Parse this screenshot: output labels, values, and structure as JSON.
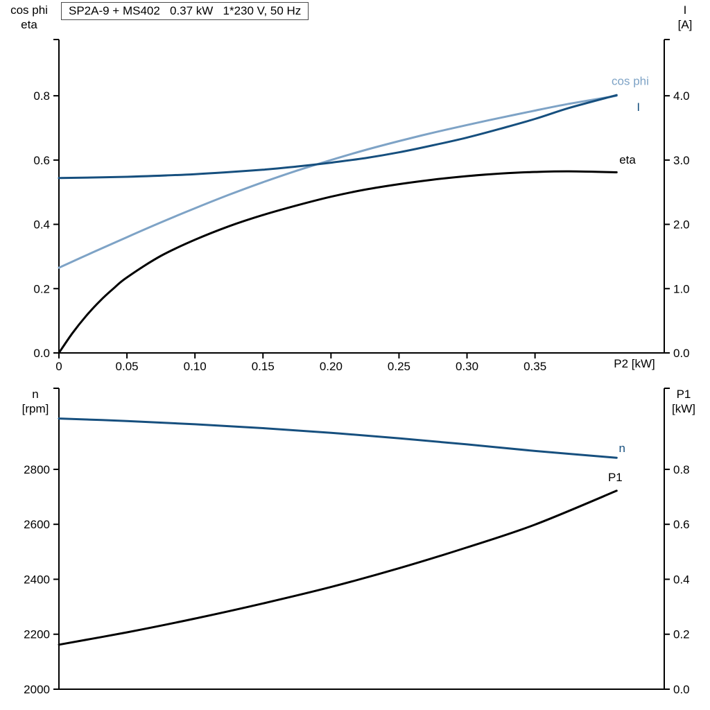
{
  "colors": {
    "dark_blue": "#164f7e",
    "light_blue": "#7ea3c6",
    "black": "#000000",
    "axis": "#000000"
  },
  "chart_data": [
    {
      "type": "line",
      "id": "motor-electrical-curves",
      "title": "SP2A-9 + MS402   0.37 kW   1*230 V, 50 Hz",
      "x_axis": {
        "label": "P2 [kW]",
        "range": [
          0,
          0.445
        ],
        "tick_values": [
          0,
          0.05,
          0.1,
          0.15,
          0.2,
          0.25,
          0.3,
          0.35
        ],
        "tick_labels": [
          "0",
          "0.05",
          "0.10",
          "0.15",
          "0.20",
          "0.25",
          "0.30",
          "0.35"
        ]
      },
      "left_axis": {
        "title_lines": [
          "cos phi",
          "eta"
        ],
        "range": [
          0,
          0.975
        ],
        "tick_values": [
          0.0,
          0.2,
          0.4,
          0.6,
          0.8
        ],
        "tick_labels": [
          "0.0",
          "0.2",
          "0.4",
          "0.6",
          "0.8"
        ]
      },
      "right_axis": {
        "title_lines": [
          "I",
          "[A]"
        ],
        "range": [
          0,
          4.875
        ],
        "tick_values": [
          0.0,
          1.0,
          2.0,
          3.0,
          4.0
        ],
        "tick_labels": [
          "0.0",
          "1.0",
          "2.0",
          "3.0",
          "4.0"
        ]
      },
      "series": [
        {
          "name": "cos phi",
          "color": "light_blue",
          "axis": "left",
          "label": {
            "x": 0.42,
            "y": 0.845
          },
          "points": [
            [
              0,
              0.265
            ],
            [
              0.025,
              0.313
            ],
            [
              0.05,
              0.36
            ],
            [
              0.075,
              0.406
            ],
            [
              0.1,
              0.45
            ],
            [
              0.125,
              0.492
            ],
            [
              0.15,
              0.531
            ],
            [
              0.175,
              0.567
            ],
            [
              0.2,
              0.6
            ],
            [
              0.225,
              0.631
            ],
            [
              0.25,
              0.659
            ],
            [
              0.275,
              0.685
            ],
            [
              0.3,
              0.709
            ],
            [
              0.325,
              0.732
            ],
            [
              0.35,
              0.754
            ],
            [
              0.375,
              0.775
            ],
            [
              0.41,
              0.8
            ]
          ]
        },
        {
          "name": "I",
          "color": "dark_blue",
          "axis": "right",
          "label": {
            "x": 0.426,
            "y": 3.82
          },
          "points": [
            [
              0,
              2.72
            ],
            [
              0.05,
              2.74
            ],
            [
              0.1,
              2.78
            ],
            [
              0.15,
              2.85
            ],
            [
              0.175,
              2.9
            ],
            [
              0.2,
              2.96
            ],
            [
              0.225,
              3.03
            ],
            [
              0.25,
              3.12
            ],
            [
              0.275,
              3.23
            ],
            [
              0.3,
              3.35
            ],
            [
              0.325,
              3.49
            ],
            [
              0.35,
              3.64
            ],
            [
              0.375,
              3.81
            ],
            [
              0.41,
              4.01
            ]
          ]
        },
        {
          "name": "eta",
          "color": "black",
          "axis": "left",
          "label": {
            "x": 0.418,
            "y": 0.6
          },
          "points": [
            [
              0,
              0
            ],
            [
              0.01,
              0.062
            ],
            [
              0.02,
              0.115
            ],
            [
              0.03,
              0.161
            ],
            [
              0.04,
              0.2
            ],
            [
              0.05,
              0.235
            ],
            [
              0.075,
              0.302
            ],
            [
              0.1,
              0.352
            ],
            [
              0.125,
              0.394
            ],
            [
              0.15,
              0.429
            ],
            [
              0.175,
              0.459
            ],
            [
              0.2,
              0.486
            ],
            [
              0.225,
              0.508
            ],
            [
              0.25,
              0.525
            ],
            [
              0.275,
              0.539
            ],
            [
              0.3,
              0.55
            ],
            [
              0.325,
              0.558
            ],
            [
              0.35,
              0.563
            ],
            [
              0.375,
              0.565
            ],
            [
              0.41,
              0.562
            ]
          ]
        }
      ]
    },
    {
      "type": "line",
      "id": "speed-power-curves",
      "title": "",
      "x_axis": {
        "label": "",
        "range": [
          0,
          0.445
        ],
        "tick_values": [],
        "tick_labels": []
      },
      "left_axis": {
        "title_lines": [
          "n",
          "[rpm]"
        ],
        "range": [
          2000,
          3095
        ],
        "tick_values": [
          2000,
          2200,
          2400,
          2600,
          2800
        ],
        "tick_labels": [
          "2000",
          "2200",
          "2400",
          "2600",
          "2800"
        ]
      },
      "right_axis": {
        "title_lines": [
          "P1",
          "[kW]"
        ],
        "range": [
          0,
          1.095
        ],
        "tick_values": [
          0.0,
          0.2,
          0.4,
          0.6,
          0.8
        ],
        "tick_labels": [
          "0.0",
          "0.2",
          "0.4",
          "0.6",
          "0.8"
        ]
      },
      "series": [
        {
          "name": "n",
          "color": "dark_blue",
          "axis": "left",
          "label": {
            "x": 0.414,
            "y": 2876
          },
          "points": [
            [
              0,
              2985
            ],
            [
              0.05,
              2976
            ],
            [
              0.1,
              2964
            ],
            [
              0.15,
              2950
            ],
            [
              0.2,
              2933
            ],
            [
              0.25,
              2913
            ],
            [
              0.3,
              2891
            ],
            [
              0.35,
              2867
            ],
            [
              0.41,
              2842
            ]
          ]
        },
        {
          "name": "P1",
          "color": "black",
          "axis": "right",
          "label": {
            "x": 0.409,
            "y": 0.77
          },
          "points": [
            [
              0,
              0.162
            ],
            [
              0.05,
              0.207
            ],
            [
              0.1,
              0.257
            ],
            [
              0.15,
              0.312
            ],
            [
              0.2,
              0.372
            ],
            [
              0.25,
              0.44
            ],
            [
              0.3,
              0.516
            ],
            [
              0.35,
              0.599
            ],
            [
              0.41,
              0.722
            ]
          ]
        }
      ]
    }
  ]
}
